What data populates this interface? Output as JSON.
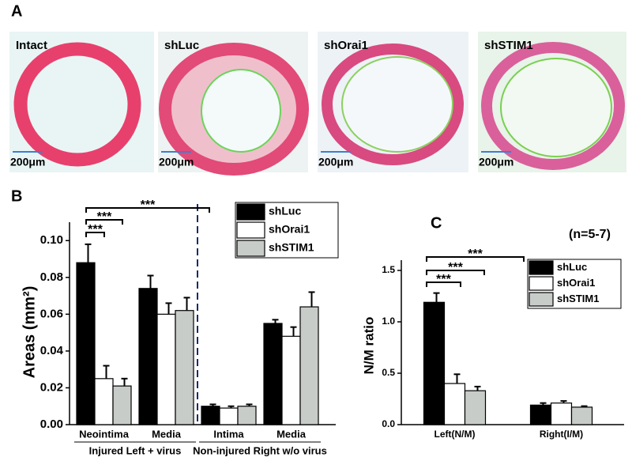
{
  "figure": {
    "panel_labels": [
      "A",
      "B",
      "C"
    ],
    "images": [
      {
        "label": "Intact",
        "scale": "200μm"
      },
      {
        "label": "shLuc",
        "scale": "200μm"
      },
      {
        "label": "shOrai1",
        "scale": "200μm"
      },
      {
        "label": "shSTIM1",
        "scale": "200μm"
      }
    ]
  },
  "chart_data": [
    {
      "type": "bar",
      "ylabel": "Areas (mm²)",
      "categories": [
        "Neointima",
        "Media",
        "Intima",
        "Media"
      ],
      "groups": [
        "Injured Left + virus",
        "Non-injured Right w/o virus"
      ],
      "series": [
        {
          "name": "shLuc",
          "color": "#000000",
          "values": [
            0.088,
            0.074,
            0.01,
            0.055
          ],
          "errors": [
            0.01,
            0.007,
            0.001,
            0.002
          ]
        },
        {
          "name": "shOrai1",
          "color": "#ffffff",
          "values": [
            0.025,
            0.06,
            0.009,
            0.048
          ],
          "errors": [
            0.007,
            0.006,
            0.001,
            0.005
          ]
        },
        {
          "name": "shSTIM1",
          "color": "#c8ccc8",
          "values": [
            0.021,
            0.062,
            0.01,
            0.064
          ],
          "errors": [
            0.004,
            0.007,
            0.001,
            0.008
          ]
        }
      ],
      "ylim": [
        0,
        0.11
      ],
      "yticks": [
        {
          "value": 0,
          "label": "0.00"
        },
        0.02,
        0.04,
        0.06,
        0.08,
        {
          "value": 0.1,
          "label": "0.10"
        }
      ],
      "annotations": [
        "***",
        "***",
        "***"
      ],
      "legend": "upper right"
    },
    {
      "type": "bar",
      "ylabel": "N/M ratio",
      "categories": [
        "Left(N/M)",
        "Right(I/M)"
      ],
      "series": [
        {
          "name": "shLuc",
          "color": "#000000",
          "values": [
            1.19,
            0.19
          ],
          "errors": [
            0.09,
            0.02
          ]
        },
        {
          "name": "shOrai1",
          "color": "#ffffff",
          "values": [
            0.4,
            0.21
          ],
          "errors": [
            0.09,
            0.02
          ]
        },
        {
          "name": "shSTIM1",
          "color": "#c8ccc8",
          "values": [
            0.33,
            0.17
          ],
          "errors": [
            0.04,
            0.01
          ]
        }
      ],
      "ylim": [
        0,
        1.6
      ],
      "yticks": [
        {
          "value": 0,
          "label": "0.0"
        },
        0.5,
        {
          "value": 1,
          "label": "1.0"
        },
        1.5
      ],
      "annotations": [
        "***",
        "***",
        "***",
        "(n=5-7)"
      ],
      "legend": "upper right"
    }
  ]
}
